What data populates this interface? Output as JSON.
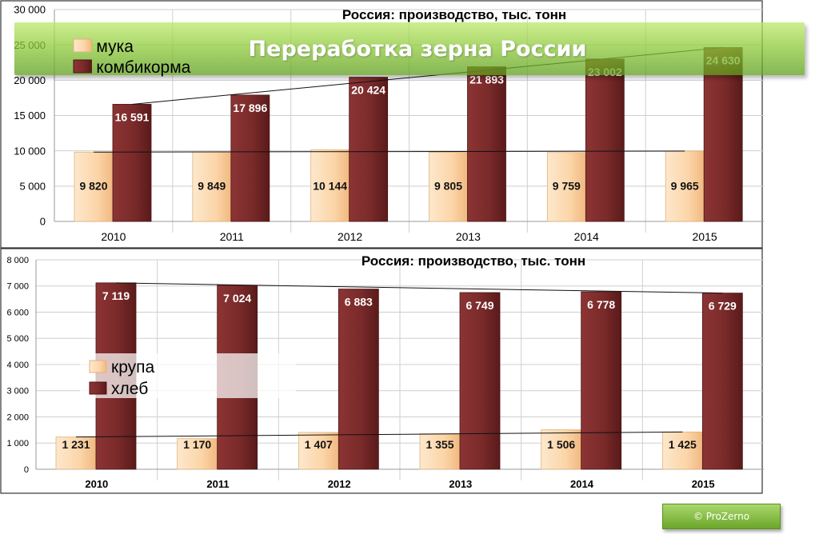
{
  "banner": {
    "title": "Переработка зерна России"
  },
  "copyright": "© ProZerno",
  "colors": {
    "light_series": "#fcd5a8",
    "dark_series": "#7a2a2a",
    "banner": "#8ecb3a"
  },
  "chart_data": [
    {
      "type": "bar",
      "title": "Россия: производство, тыс. тонн",
      "categories": [
        "2010",
        "2011",
        "2012",
        "2013",
        "2014",
        "2015"
      ],
      "series": [
        {
          "name": "мука",
          "values": [
            9820,
            9849,
            10144,
            9805,
            9759,
            9965
          ],
          "labels": [
            "9 820",
            "9 849",
            "10 144",
            "9 805",
            "9 759",
            "9 965"
          ]
        },
        {
          "name": "комбикорма",
          "values": [
            16591,
            17896,
            20424,
            21893,
            23002,
            24630
          ],
          "labels": [
            "16 591",
            "17 896",
            "20 424",
            "21 893",
            "23 002",
            "24 630"
          ]
        }
      ],
      "ylim": [
        0,
        30000
      ],
      "yticks": [
        "0",
        "5 000",
        "10 000",
        "15 000",
        "20 000",
        "25 000",
        "30 000"
      ],
      "grid": true,
      "legend": "top-left"
    },
    {
      "type": "bar",
      "title": "Россия: производство, тыс. тонн",
      "categories": [
        "2010",
        "2011",
        "2012",
        "2013",
        "2014",
        "2015"
      ],
      "series": [
        {
          "name": "крупа",
          "values": [
            1231,
            1170,
            1407,
            1355,
            1506,
            1425
          ],
          "labels": [
            "1 231",
            "1 170",
            "1 407",
            "1 355",
            "1 506",
            "1 425"
          ]
        },
        {
          "name": "хлеб",
          "values": [
            7119,
            7024,
            6883,
            6749,
            6778,
            6729
          ],
          "labels": [
            "7 119",
            "7 024",
            "6 883",
            "6 749",
            "6 778",
            "6 729"
          ]
        }
      ],
      "ylim": [
        0,
        8000
      ],
      "yticks": [
        "0",
        "1 000",
        "2 000",
        "3 000",
        "4 000",
        "5 000",
        "6 000",
        "7 000",
        "8 000"
      ],
      "grid": true,
      "legend": "left"
    }
  ]
}
